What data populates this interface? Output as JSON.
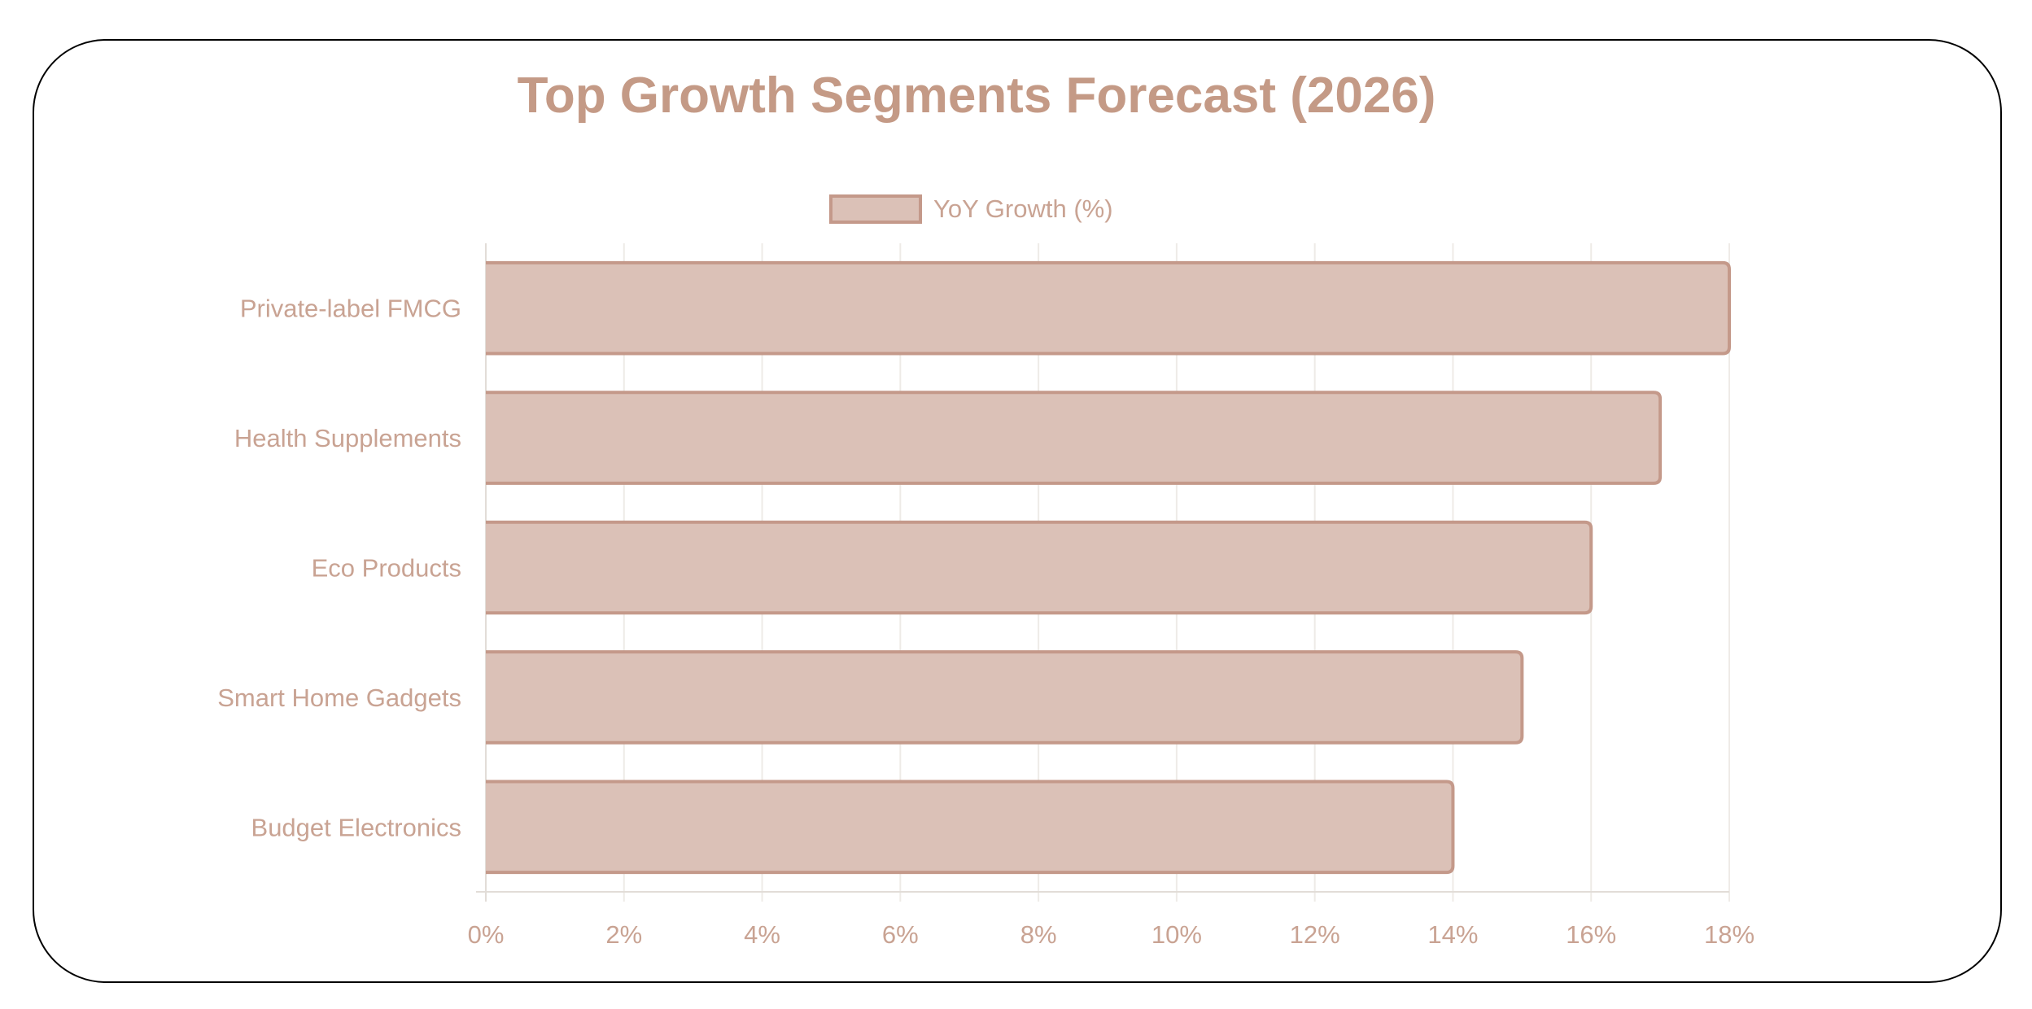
{
  "chart_data": {
    "type": "bar",
    "orientation": "horizontal",
    "title": "Top Growth Segments Forecast (2026)",
    "legend": {
      "position": "top",
      "entries": [
        "YoY Growth (%)"
      ]
    },
    "categories": [
      "Private-label FMCG",
      "Health Supplements",
      "Eco Products",
      "Smart Home Gadgets",
      "Budget Electronics"
    ],
    "series": [
      {
        "name": "YoY Growth (%)",
        "values": [
          18,
          17,
          16,
          15,
          14
        ]
      }
    ],
    "xlim": [
      0,
      18
    ],
    "x_ticks": [
      "0%",
      "2%",
      "4%",
      "6%",
      "8%",
      "10%",
      "12%",
      "14%",
      "16%",
      "18%"
    ],
    "xlabel": "",
    "ylabel": "",
    "grid": true,
    "colors": {
      "fill": "#dbc1b7",
      "stroke": "#c4998a",
      "text": "#c9a393",
      "title": "#c49a86",
      "grid": "#eeebe7"
    }
  }
}
